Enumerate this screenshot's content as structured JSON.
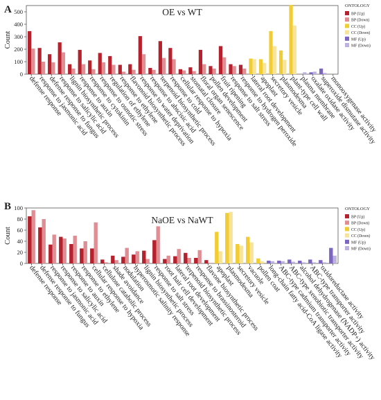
{
  "colors": {
    "BP (Up)": "#b5222d",
    "BP (Down)": "#df8f94",
    "CC (Up)": "#f2cc33",
    "CC (Down)": "#f7e39a",
    "MF (Up)": "#7d65c2",
    "MF (Down)": "#bcb1e0"
  },
  "chart_data": [
    {
      "panel": "A",
      "title": "OE vs WT",
      "type": "bar",
      "ylabel": "Count",
      "ylim": [
        0,
        550
      ],
      "yticks": [
        0,
        100,
        200,
        300,
        400,
        500
      ],
      "legend_title": "ONTOLOGY",
      "legend": [
        "BP (Up)",
        "BP (Down)",
        "CC (Up)",
        "CC (Down)",
        "MF (Up)",
        "MF (Down)"
      ],
      "categories": [
        {
          "label": "defense response",
          "group": "BP",
          "up": 345,
          "down": 205
        },
        {
          "label": "response to jasmonic acid",
          "group": "BP",
          "up": 210,
          "down": 100
        },
        {
          "label": "defense response to fungus",
          "group": "BP",
          "up": 160,
          "down": 95
        },
        {
          "label": "response to salicylic acid",
          "group": "BP",
          "up": 255,
          "down": 175
        },
        {
          "label": "lignin biosynthetic process",
          "group": "BP",
          "up": 80,
          "down": 45
        },
        {
          "label": "response to auxin",
          "group": "BP",
          "up": 195,
          "down": 80
        },
        {
          "label": "response to cytokinin",
          "group": "BP",
          "up": 110,
          "down": 40
        },
        {
          "label": "response to osmotic stress",
          "group": "BP",
          "up": 170,
          "down": 95
        },
        {
          "label": "regulation of ethylene",
          "group": "BP",
          "up": 145,
          "down": 75
        },
        {
          "label": "response to ethylene",
          "group": "BP",
          "up": 75,
          "down": 20
        },
        {
          "label": "flavonoid biosynthetic process",
          "group": "BP",
          "up": 80,
          "down": 35
        },
        {
          "label": "response to water deprivation",
          "group": "BP",
          "up": 305,
          "down": 160
        },
        {
          "label": "response to abscisic acid",
          "group": "BP",
          "up": 50,
          "down": 35
        },
        {
          "label": "terpenoid biosynthetic process",
          "group": "BP",
          "up": 265,
          "down": 130
        },
        {
          "label": "response to cold",
          "group": "BP",
          "up": 210,
          "down": 120
        },
        {
          "label": "cellular response to hypoxia",
          "group": "BP",
          "up": 40,
          "down": 30
        },
        {
          "label": "stomatal closure",
          "group": "BP",
          "up": 55,
          "down": 25
        },
        {
          "label": "floral organ senescence",
          "group": "BP",
          "up": 195,
          "down": 80
        },
        {
          "label": "pollen development",
          "group": "BP",
          "up": 65,
          "down": 45
        },
        {
          "label": "fruit ripening",
          "group": "BP",
          "up": 225,
          "down": 135
        },
        {
          "label": "response to salt stress",
          "group": "BP",
          "up": 80,
          "down": 65
        },
        {
          "label": "response to hydrogen peroxide",
          "group": "BP",
          "up": 75,
          "down": 45
        },
        {
          "label": "lateral root development",
          "group": "CC",
          "up": 125,
          "down": 120
        },
        {
          "label": "apoplast",
          "group": "CC",
          "up": 120,
          "down": 90
        },
        {
          "label": "secretory vesicle",
          "group": "CC",
          "up": 345,
          "down": 225
        },
        {
          "label": "plasmodesma",
          "group": "CC",
          "up": 190,
          "down": 115
        },
        {
          "label": "plant-type cell wall",
          "group": "CC",
          "up": 555,
          "down": 390
        },
        {
          "label": "plasma membrane",
          "group": "MF",
          "up": 0,
          "down": 15
        },
        {
          "label": "oxalate oxidase activity",
          "group": "MF",
          "up": 15,
          "down": 20
        },
        {
          "label": "superoxide dismutase activity",
          "group": "MF",
          "up": 45,
          "down": 10
        },
        {
          "label": "monooxygenase activity",
          "group": "MF",
          "up": 0,
          "down": 0
        }
      ]
    },
    {
      "panel": "B",
      "title": "NaOE vs NaWT",
      "type": "bar",
      "ylabel": "Count",
      "ylim": [
        0,
        100
      ],
      "yticks": [
        0,
        20,
        40,
        60,
        80,
        100
      ],
      "legend_title": "ONTOLOGY",
      "legend": [
        "BP (Up)",
        "BP (Down)",
        "CC (Up)",
        "CC (Down)",
        "MF (Up)",
        "MF (Down)"
      ],
      "categories": [
        {
          "label": "defense response",
          "group": "BP",
          "up": 85,
          "down": 96
        },
        {
          "label": "defense response to fungus",
          "group": "BP",
          "up": 65,
          "down": 80
        },
        {
          "label": "response to jasmonic acid",
          "group": "BP",
          "up": 34,
          "down": 52
        },
        {
          "label": "response to salicylic acid",
          "group": "BP",
          "up": 48,
          "down": 45
        },
        {
          "label": "response to auxin",
          "group": "BP",
          "up": 35,
          "down": 50
        },
        {
          "label": "response to ethylene",
          "group": "BP",
          "up": 27,
          "down": 40
        },
        {
          "label": "cellular response to hypoxia",
          "group": "BP",
          "up": 27,
          "down": 74
        },
        {
          "label": "cellulose catabolic process",
          "group": "BP",
          "up": 7,
          "down": 2
        },
        {
          "label": "shade avoidance",
          "group": "BP",
          "up": 14,
          "down": 6
        },
        {
          "label": "nodulation",
          "group": "BP",
          "up": 12,
          "down": 28
        },
        {
          "label": "hyperosmotic salinity response",
          "group": "BP",
          "up": 16,
          "down": 22
        },
        {
          "label": "lignin biosynthetic process",
          "group": "BP",
          "up": 23,
          "down": 8
        },
        {
          "label": "response to salt stress",
          "group": "BP",
          "up": 42,
          "down": 67
        },
        {
          "label": "root hair cell development",
          "group": "BP",
          "up": 8,
          "down": 14
        },
        {
          "label": "lateral root development",
          "group": "BP",
          "up": 13,
          "down": 26
        },
        {
          "label": "terpenoid biosynthetic process",
          "group": "BP",
          "up": 19,
          "down": 10
        },
        {
          "label": "response to brassinosteroid",
          "group": "BP",
          "up": 10,
          "down": 24
        },
        {
          "label": "flavone biosynthetic process",
          "group": "BP",
          "up": 6,
          "down": 1
        },
        {
          "label": "apoplast",
          "group": "CC",
          "up": 57,
          "down": 22
        },
        {
          "label": "plasmodesma",
          "group": "CC",
          "up": 91,
          "down": 93
        },
        {
          "label": "secretory vesicle",
          "group": "CC",
          "up": 35,
          "down": 32
        },
        {
          "label": "vacuole",
          "group": "CC",
          "up": 48,
          "down": 38
        },
        {
          "label": "pollen coat",
          "group": "CC",
          "up": 9,
          "down": 4
        },
        {
          "label": "long-chain fatty acid-CoA ligase activity",
          "group": "MF",
          "up": 5,
          "down": 4
        },
        {
          "label": "ABC-type cadmium transporter activity",
          "group": "MF",
          "up": 5,
          "down": 4
        },
        {
          "label": "ABC-type xenobiotic transporter activity",
          "group": "MF",
          "up": 7,
          "down": 3
        },
        {
          "label": "alcohol dehydrogenase (NADP+) activity",
          "group": "MF",
          "up": 5,
          "down": 2
        },
        {
          "label": "ABC-type transporter activity",
          "group": "MF",
          "up": 7,
          "down": 2
        },
        {
          "label": "oxidoreductase activity",
          "group": "MF",
          "up": 6,
          "down": 2
        },
        {
          "label": "",
          "group": "MF",
          "up": 28,
          "down": 14
        }
      ]
    }
  ]
}
